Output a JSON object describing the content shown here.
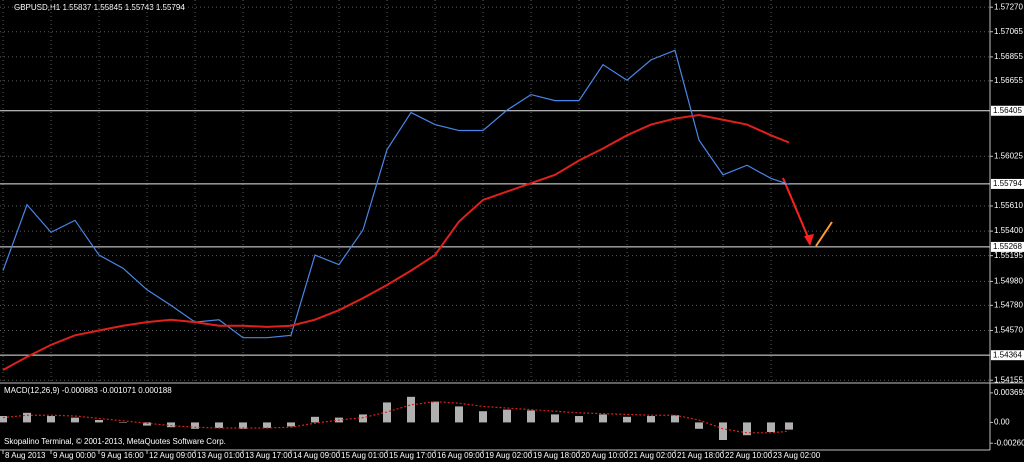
{
  "header": "GBPUSD,H1  1.55837 1.55845 1.55743 1.55794",
  "footer": "Skopalino Terminal, © 2001-2013, MetaQuotes Software Corp.",
  "chart_data": [
    {
      "type": "line",
      "x": [
        0,
        8,
        16,
        24,
        32,
        40,
        48,
        56,
        64,
        72,
        80,
        88,
        96,
        104,
        112,
        120,
        128,
        136,
        144,
        152,
        160,
        168,
        176,
        184,
        192,
        200,
        208,
        216,
        224,
        232,
        240,
        248,
        256,
        262
      ],
      "series": [
        {
          "color": "#4a86e8",
          "values": [
            1.5507,
            1.5562,
            1.5539,
            1.5549,
            1.552,
            1.5509,
            1.5491,
            1.5478,
            1.5464,
            1.5466,
            1.5451,
            1.5451,
            1.5453,
            1.552,
            1.5512,
            1.5541,
            1.5608,
            1.5639,
            1.5629,
            1.5624,
            1.5624,
            1.5641,
            1.5654,
            1.5649,
            1.5649,
            1.5679,
            1.5666,
            1.5683,
            1.5691,
            1.5616,
            1.5587,
            1.5595,
            1.5584,
            1.5579
          ]
        },
        {
          "color": "#e0201b",
          "values": [
            1.5424,
            1.5435,
            1.5445,
            1.5453,
            1.5457,
            1.5461,
            1.5464,
            1.5466,
            1.5464,
            1.5461,
            1.5461,
            1.546,
            1.5461,
            1.5466,
            1.5474,
            1.5484,
            1.5495,
            1.5507,
            1.552,
            1.5548,
            1.5566,
            1.5573,
            1.558,
            1.5587,
            1.5599,
            1.5609,
            1.562,
            1.5629,
            1.5634,
            1.5637,
            1.5633,
            1.5629,
            1.562,
            1.5614
          ]
        }
      ],
      "xlim": [
        -1,
        329
      ],
      "xticks": [
        {
          "value": 0,
          "label": "8 Aug 2013"
        },
        {
          "value": 16,
          "label": "9 Aug 00:00"
        },
        {
          "value": 32,
          "label": "9 Aug 16:00"
        },
        {
          "value": 48,
          "label": "12 Aug 09:00"
        },
        {
          "value": 64,
          "label": "13 Aug 01:00"
        },
        {
          "value": 80,
          "label": "13 Aug 17:00"
        },
        {
          "value": 96,
          "label": "14 Aug 09:00"
        },
        {
          "value": 112,
          "label": "15 Aug 01:00"
        },
        {
          "value": 128,
          "label": "15 Aug 17:00"
        },
        {
          "value": 144,
          "label": "16 Aug 09:00"
        },
        {
          "value": 160,
          "label": "19 Aug 02:00"
        },
        {
          "value": 176,
          "label": "19 Aug 18:00"
        },
        {
          "value": 192,
          "label": "20 Aug 10:00"
        },
        {
          "value": 208,
          "label": "21 Aug 02:00"
        },
        {
          "value": 224,
          "label": "21 Aug 18:00"
        },
        {
          "value": 240,
          "label": "22 Aug 10:00"
        },
        {
          "value": 256,
          "label": "23 Aug 02:00"
        }
      ],
      "ylim": [
        1.5414,
        1.5733
      ],
      "yticks": [
        {
          "value": 1.5727,
          "label": "1.57270"
        },
        1.57065,
        1.56855,
        1.56655,
        1.56025,
        {
          "value": 1.5561,
          "label": "1.55610"
        },
        {
          "value": 1.554,
          "label": "1.55400"
        },
        1.55195,
        {
          "value": 1.5498,
          "label": "1.54980"
        },
        {
          "value": 1.5478,
          "label": "1.54780"
        },
        {
          "value": 1.5457,
          "label": "1.54570"
        },
        1.54155
      ],
      "levels": [
        1.56405,
        1.55794,
        1.55268,
        1.54364
      ],
      "grid": true
    },
    {
      "type": "bar",
      "title": "MACD(12,26,9) -0.000883 -0.001071 0.000188",
      "x": [
        0,
        8,
        16,
        24,
        32,
        40,
        48,
        56,
        64,
        72,
        80,
        88,
        96,
        104,
        112,
        120,
        128,
        136,
        144,
        152,
        160,
        168,
        176,
        184,
        192,
        200,
        208,
        216,
        224,
        232,
        240,
        248,
        256,
        262
      ],
      "series": [
        {
          "color": "#b0b0b0",
          "values": [
            0.0008,
            0.0012,
            0.0008,
            0.0006,
            0.0003,
            0.0,
            -0.0004,
            -0.0006,
            -0.0008,
            -0.0007,
            -0.0008,
            -0.0007,
            -0.0005,
            0.0007,
            0.0006,
            0.001,
            0.0025,
            0.0032,
            0.0026,
            0.002,
            0.0014,
            0.0016,
            0.0015,
            0.001,
            0.0008,
            0.001,
            0.0007,
            0.0008,
            0.0009,
            -0.0008,
            -0.0022,
            -0.0016,
            -0.0012,
            -0.0009
          ]
        },
        {
          "color": "#e0201b",
          "type": "line",
          "values": [
            0.0006,
            0.0009,
            0.0009,
            0.0008,
            0.0005,
            0.0002,
            -0.0001,
            -0.0004,
            -0.0006,
            -0.0007,
            -0.0007,
            -0.0007,
            -0.0006,
            -0.0001,
            0.0003,
            0.0006,
            0.0013,
            0.0022,
            0.0026,
            0.0024,
            0.002,
            0.0018,
            0.0016,
            0.0014,
            0.0012,
            0.0011,
            0.001,
            0.0009,
            0.0009,
            0.0003,
            -0.0008,
            -0.0013,
            -0.0013,
            -0.0011
          ]
        }
      ],
      "xlim": [
        -1,
        329
      ],
      "ylim": [
        -0.00345,
        0.00468
      ],
      "yticks": [
        0.003693,
        {
          "value": 0,
          "label": "0.00"
        },
        -0.002601
      ]
    }
  ]
}
